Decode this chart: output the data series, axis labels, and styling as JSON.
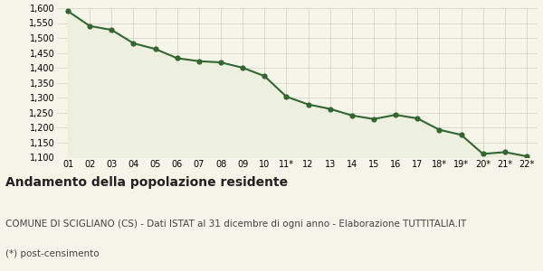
{
  "x_labels": [
    "01",
    "02",
    "03",
    "04",
    "05",
    "06",
    "07",
    "08",
    "09",
    "10",
    "11*",
    "12",
    "13",
    "14",
    "15",
    "16",
    "17",
    "18*",
    "19*",
    "20*",
    "21*",
    "22*"
  ],
  "values": [
    1590,
    1540,
    1527,
    1482,
    1463,
    1432,
    1422,
    1418,
    1400,
    1372,
    1303,
    1277,
    1262,
    1240,
    1228,
    1242,
    1230,
    1192,
    1175,
    1111,
    1117,
    1103
  ],
  "line_color": "#336633",
  "fill_color": "#edf0de",
  "marker_color": "#336633",
  "background_color": "#f5f5ea",
  "grid_color": "#d0d0c0",
  "ylim": [
    1100,
    1600
  ],
  "yticks": [
    1100,
    1150,
    1200,
    1250,
    1300,
    1350,
    1400,
    1450,
    1500,
    1550,
    1600
  ],
  "title": "Andamento della popolazione residente",
  "subtitle": "COMUNE DI SCIGLIANO (CS) - Dati ISTAT al 31 dicembre di ogni anno - Elaborazione TUTTITALIA.IT",
  "footnote": "(*) post-censimento",
  "title_fontsize": 10,
  "subtitle_fontsize": 7.5,
  "footnote_fontsize": 7.5,
  "tick_fontsize": 7,
  "line_width": 1.5,
  "marker_size": 20
}
